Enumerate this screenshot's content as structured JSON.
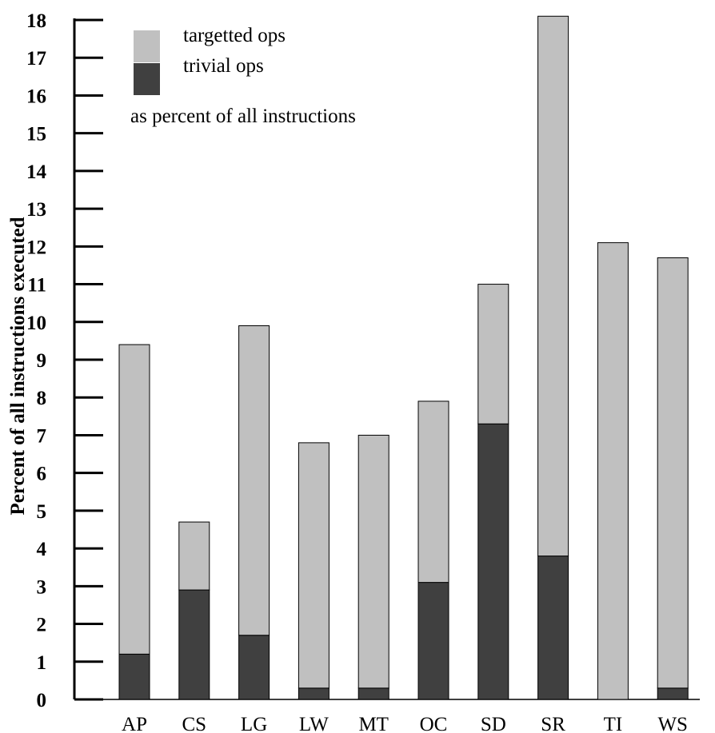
{
  "chart_data": {
    "type": "bar",
    "stacked": true,
    "title": "",
    "xlabel": "",
    "ylabel": "Percent of all instructions executed",
    "ylim": [
      0,
      18
    ],
    "yticks": [
      0,
      1,
      2,
      3,
      4,
      5,
      6,
      7,
      8,
      9,
      10,
      11,
      12,
      13,
      14,
      15,
      16,
      17,
      18
    ],
    "categories": [
      "AP",
      "CS",
      "LG",
      "LW",
      "MT",
      "OC",
      "SD",
      "SR",
      "TI",
      "WS"
    ],
    "series": [
      {
        "name": "trivial ops",
        "color": "#404040",
        "values": [
          1.2,
          2.9,
          1.7,
          0.3,
          0.3,
          3.1,
          7.3,
          3.8,
          0.0,
          0.3
        ]
      },
      {
        "name": "targetted ops",
        "color": "#c0c0c0",
        "values": [
          8.2,
          1.8,
          8.2,
          6.5,
          6.7,
          4.8,
          3.7,
          14.3,
          12.1,
          11.4
        ]
      }
    ],
    "legend": {
      "position": "top-left",
      "entries": [
        "targetted ops",
        "trivial ops"
      ],
      "note": "as percent of all instructions"
    },
    "grid": false
  }
}
